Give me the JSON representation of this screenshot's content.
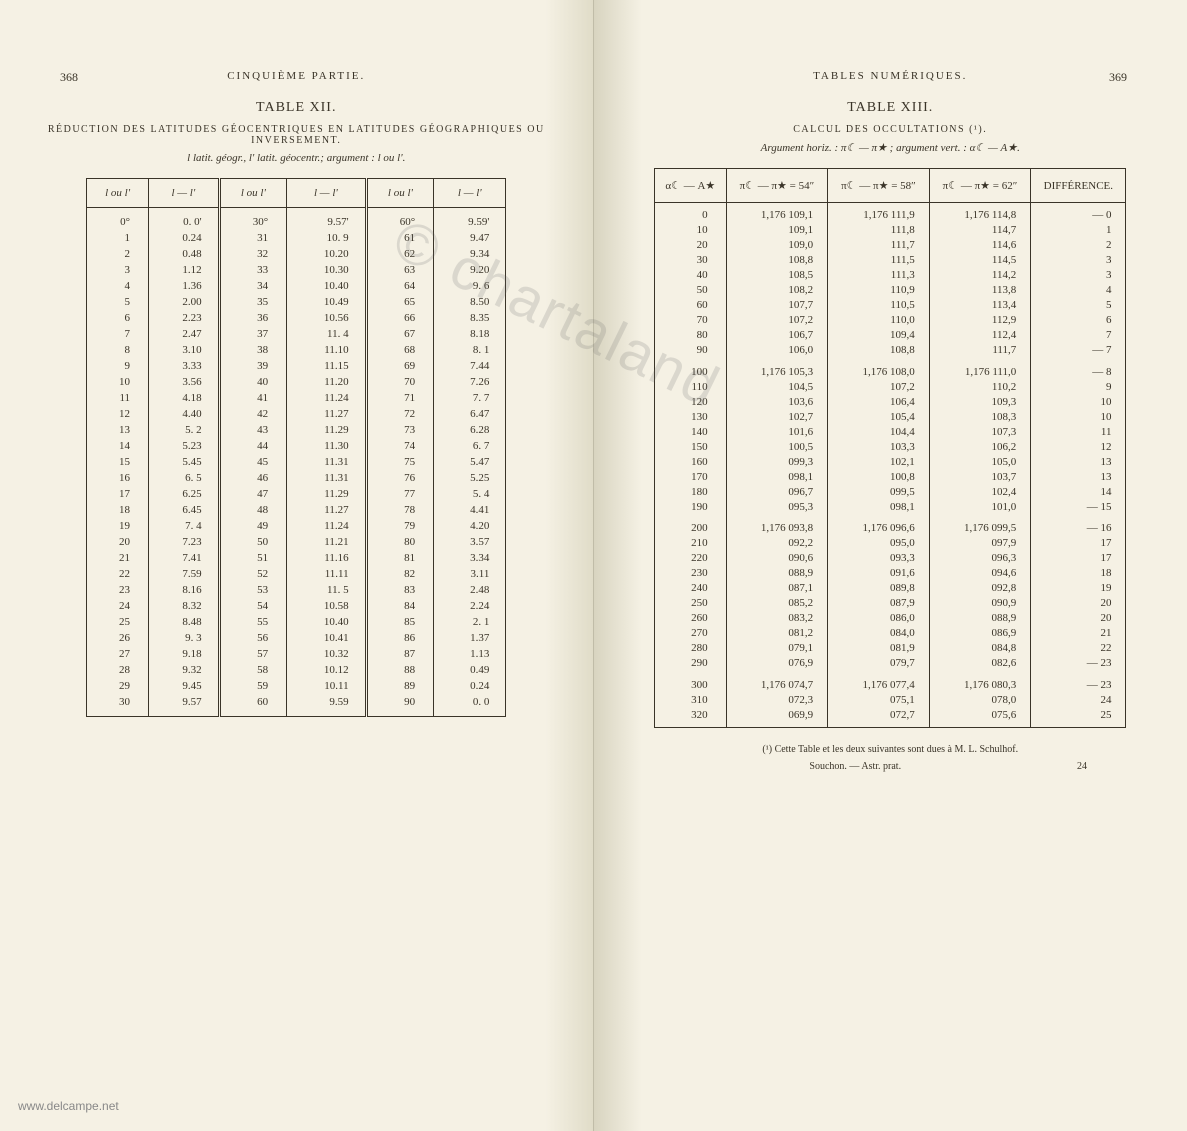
{
  "watermark": "© chartaland",
  "site_watermark": "www.delcampe.net",
  "left": {
    "page_number": "368",
    "running_header": "CINQUIÈME PARTIE.",
    "table_title": "TABLE XII.",
    "table_subtitle": "RÉDUCTION DES LATITUDES GÉOCENTRIQUES EN LATITUDES GÉOGRAPHIQUES OU INVERSEMENT.",
    "table_caption": "l latit. géogr., l' latit. géocentr.; argument : l ou l'.",
    "headers": [
      "l ou l'",
      "l — l'",
      "l ou l'",
      "l — l'",
      "l ou l'",
      "l — l'"
    ],
    "rows": [
      [
        "0°",
        "0. 0'",
        "30°",
        "9.57'",
        "60°",
        "9.59'"
      ],
      [
        "1",
        "0.24",
        "31",
        "10. 9",
        "61",
        "9.47"
      ],
      [
        "2",
        "0.48",
        "32",
        "10.20",
        "62",
        "9.34"
      ],
      [
        "3",
        "1.12",
        "33",
        "10.30",
        "63",
        "9.20"
      ],
      [
        "4",
        "1.36",
        "34",
        "10.40",
        "64",
        "9. 6"
      ],
      [
        "5",
        "2.00",
        "35",
        "10.49",
        "65",
        "8.50"
      ],
      [
        "6",
        "2.23",
        "36",
        "10.56",
        "66",
        "8.35"
      ],
      [
        "7",
        "2.47",
        "37",
        "11. 4",
        "67",
        "8.18"
      ],
      [
        "8",
        "3.10",
        "38",
        "11.10",
        "68",
        "8. 1"
      ],
      [
        "9",
        "3.33",
        "39",
        "11.15",
        "69",
        "7.44"
      ],
      [
        "10",
        "3.56",
        "40",
        "11.20",
        "70",
        "7.26"
      ],
      [
        "11",
        "4.18",
        "41",
        "11.24",
        "71",
        "7. 7"
      ],
      [
        "12",
        "4.40",
        "42",
        "11.27",
        "72",
        "6.47"
      ],
      [
        "13",
        "5. 2",
        "43",
        "11.29",
        "73",
        "6.28"
      ],
      [
        "14",
        "5.23",
        "44",
        "11.30",
        "74",
        "6. 7"
      ],
      [
        "15",
        "5.45",
        "45",
        "11.31",
        "75",
        "5.47"
      ],
      [
        "16",
        "6. 5",
        "46",
        "11.31",
        "76",
        "5.25"
      ],
      [
        "17",
        "6.25",
        "47",
        "11.29",
        "77",
        "5. 4"
      ],
      [
        "18",
        "6.45",
        "48",
        "11.27",
        "78",
        "4.41"
      ],
      [
        "19",
        "7. 4",
        "49",
        "11.24",
        "79",
        "4.20"
      ],
      [
        "20",
        "7.23",
        "50",
        "11.21",
        "80",
        "3.57"
      ],
      [
        "21",
        "7.41",
        "51",
        "11.16",
        "81",
        "3.34"
      ],
      [
        "22",
        "7.59",
        "52",
        "11.11",
        "82",
        "3.11"
      ],
      [
        "23",
        "8.16",
        "53",
        "11. 5",
        "83",
        "2.48"
      ],
      [
        "24",
        "8.32",
        "54",
        "10.58",
        "84",
        "2.24"
      ],
      [
        "25",
        "8.48",
        "55",
        "10.40",
        "85",
        "2. 1"
      ],
      [
        "26",
        "9. 3",
        "56",
        "10.41",
        "86",
        "1.37"
      ],
      [
        "27",
        "9.18",
        "57",
        "10.32",
        "87",
        "1.13"
      ],
      [
        "28",
        "9.32",
        "58",
        "10.12",
        "88",
        "0.49"
      ],
      [
        "29",
        "9.45",
        "59",
        "10.11",
        "89",
        "0.24"
      ],
      [
        "30",
        "9.57",
        "60",
        "9.59",
        "90",
        "0. 0"
      ]
    ]
  },
  "right": {
    "page_number": "369",
    "running_header": "TABLES NUMÉRIQUES.",
    "table_title": "TABLE XIII.",
    "table_subtitle": "CALCUL DES OCCULTATIONS (¹).",
    "table_caption": "Argument horiz. : π☾ — π★ ; argument vert. : α☾ — A★.",
    "headers": [
      "α☾ — A★",
      "π☾ — π★ = 54″",
      "π☾ — π★ = 58″",
      "π☾ — π★ = 62″",
      "DIFFÉRENCE."
    ],
    "groups": [
      [
        [
          "0",
          "1,176 109,1",
          "1,176 111,9",
          "1,176 114,8",
          "— 0"
        ],
        [
          "10",
          "109,1",
          "111,8",
          "114,7",
          "1"
        ],
        [
          "20",
          "109,0",
          "111,7",
          "114,6",
          "2"
        ],
        [
          "30",
          "108,8",
          "111,5",
          "114,5",
          "3"
        ],
        [
          "40",
          "108,5",
          "111,3",
          "114,2",
          "3"
        ],
        [
          "50",
          "108,2",
          "110,9",
          "113,8",
          "4"
        ],
        [
          "60",
          "107,7",
          "110,5",
          "113,4",
          "5"
        ],
        [
          "70",
          "107,2",
          "110,0",
          "112,9",
          "6"
        ],
        [
          "80",
          "106,7",
          "109,4",
          "112,4",
          "7"
        ],
        [
          "90",
          "106,0",
          "108,8",
          "111,7",
          "— 7"
        ]
      ],
      [
        [
          "100",
          "1,176 105,3",
          "1,176 108,0",
          "1,176 111,0",
          "— 8"
        ],
        [
          "110",
          "104,5",
          "107,2",
          "110,2",
          "9"
        ],
        [
          "120",
          "103,6",
          "106,4",
          "109,3",
          "10"
        ],
        [
          "130",
          "102,7",
          "105,4",
          "108,3",
          "10"
        ],
        [
          "140",
          "101,6",
          "104,4",
          "107,3",
          "11"
        ],
        [
          "150",
          "100,5",
          "103,3",
          "106,2",
          "12"
        ],
        [
          "160",
          "099,3",
          "102,1",
          "105,0",
          "13"
        ],
        [
          "170",
          "098,1",
          "100,8",
          "103,7",
          "13"
        ],
        [
          "180",
          "096,7",
          "099,5",
          "102,4",
          "14"
        ],
        [
          "190",
          "095,3",
          "098,1",
          "101,0",
          "— 15"
        ]
      ],
      [
        [
          "200",
          "1,176 093,8",
          "1,176 096,6",
          "1,176 099,5",
          "— 16"
        ],
        [
          "210",
          "092,2",
          "095,0",
          "097,9",
          "17"
        ],
        [
          "220",
          "090,6",
          "093,3",
          "096,3",
          "17"
        ],
        [
          "230",
          "088,9",
          "091,6",
          "094,6",
          "18"
        ],
        [
          "240",
          "087,1",
          "089,8",
          "092,8",
          "19"
        ],
        [
          "250",
          "085,2",
          "087,9",
          "090,9",
          "20"
        ],
        [
          "260",
          "083,2",
          "086,0",
          "088,9",
          "20"
        ],
        [
          "270",
          "081,2",
          "084,0",
          "086,9",
          "21"
        ],
        [
          "280",
          "079,1",
          "081,9",
          "084,8",
          "22"
        ],
        [
          "290",
          "076,9",
          "079,7",
          "082,6",
          "— 23"
        ]
      ],
      [
        [
          "300",
          "1,176 074,7",
          "1,176 077,4",
          "1,176 080,3",
          "— 23"
        ],
        [
          "310",
          "072,3",
          "075,1",
          "078,0",
          "24"
        ],
        [
          "320",
          "069,9",
          "072,7",
          "075,6",
          "25"
        ]
      ]
    ],
    "footnote": "(¹) Cette Table et les deux suivantes sont dues à M. L. Schulhof.",
    "footnote2": "Souchon. — Astr. prat.",
    "sig": "24"
  }
}
